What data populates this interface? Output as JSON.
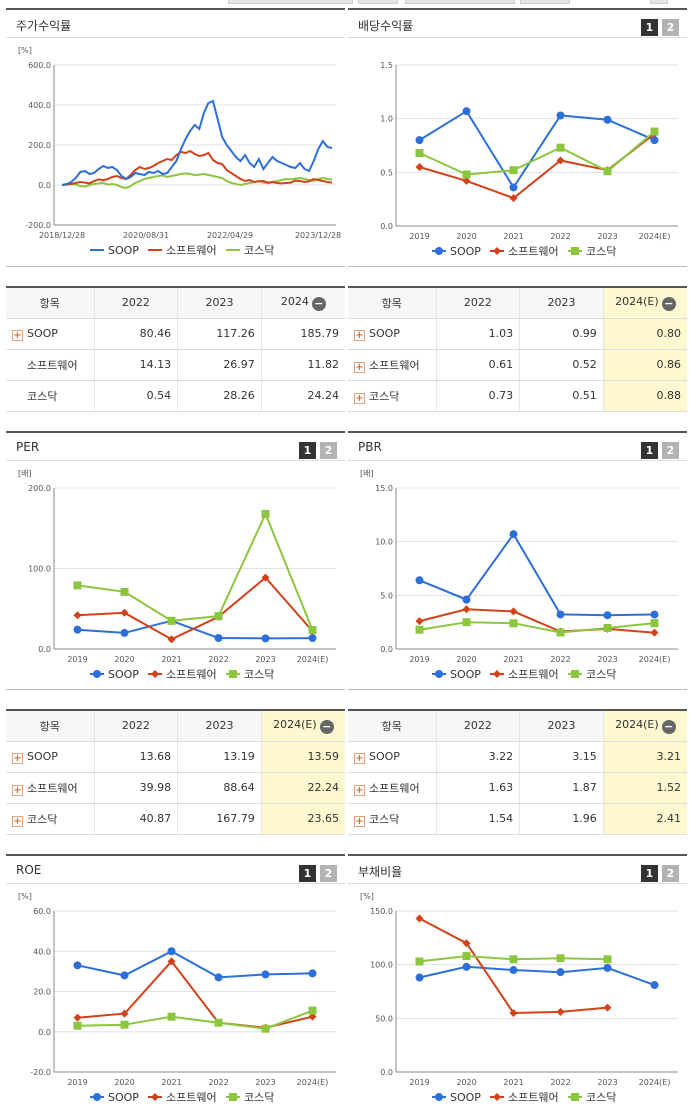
{
  "colors": {
    "soop": "#2d6fd9",
    "software": "#d3411a",
    "kosdaq": "#8cc63f"
  },
  "legend": [
    "SOOP",
    "소프트웨어",
    "코스닥"
  ],
  "tabs": {
    "one": "1",
    "two": "2"
  },
  "charts": [
    {
      "id": "stock",
      "title": "주가수익률",
      "unit": "[%]",
      "has_tabs": false,
      "chart_data": {
        "type": "line",
        "x_ticks": [
          "2018/12/28",
          "2020/08/31",
          "2022/04/29",
          "2023/12/28"
        ],
        "y_ticks": [
          "600.0",
          "400.0",
          "200.0",
          "0.0",
          "-200.0"
        ],
        "ylim": [
          -200,
          600
        ],
        "series": [
          {
            "name": "SOOP",
            "values": [
              0,
              5,
              15,
              35,
              65,
              70,
              55,
              60,
              80,
              95,
              85,
              90,
              75,
              45,
              30,
              40,
              60,
              55,
              50,
              65,
              60,
              70,
              55,
              60,
              90,
              120,
              180,
              230,
              270,
              300,
              280,
              360,
              410,
              420,
              330,
              240,
              200,
              170,
              140,
              120,
              150,
              110,
              90,
              130,
              80,
              110,
              140,
              120,
              110,
              100,
              90,
              85,
              110,
              80,
              70,
              120,
              180,
              220,
              190,
              185
            ]
          },
          {
            "name": "소프트웨어",
            "values": [
              0,
              2,
              5,
              10,
              15,
              12,
              8,
              20,
              28,
              24,
              30,
              40,
              45,
              35,
              30,
              50,
              75,
              90,
              80,
              85,
              95,
              110,
              120,
              130,
              125,
              150,
              165,
              160,
              170,
              155,
              145,
              150,
              160,
              125,
              110,
              105,
              75,
              60,
              45,
              30,
              20,
              25,
              15,
              18,
              20,
              12,
              15,
              10,
              8,
              10,
              12,
              22,
              20,
              15,
              18,
              30,
              25,
              20,
              15,
              12
            ]
          },
          {
            "name": "코스닥",
            "values": [
              0,
              3,
              5,
              2,
              -5,
              -8,
              0,
              5,
              8,
              10,
              2,
              5,
              0,
              -10,
              -15,
              -5,
              10,
              20,
              30,
              35,
              40,
              45,
              48,
              40,
              45,
              50,
              55,
              58,
              55,
              50,
              52,
              55,
              50,
              45,
              40,
              35,
              20,
              10,
              5,
              0,
              5,
              10,
              15,
              20,
              12,
              8,
              15,
              20,
              25,
              30,
              28,
              32,
              35,
              30,
              25,
              20,
              30,
              35,
              30,
              28
            ]
          }
        ]
      }
    },
    {
      "id": "dividend",
      "title": "배당수익률",
      "unit": "",
      "has_tabs": true,
      "chart_data": {
        "type": "line",
        "categories": [
          "2019",
          "2020",
          "2021",
          "2022",
          "2023",
          "2024(E)"
        ],
        "y_ticks": [
          "1.5",
          "1.0",
          "0.5",
          "0.0"
        ],
        "ylim": [
          0,
          1.5
        ],
        "series": [
          {
            "name": "SOOP",
            "values": [
              0.8,
              1.07,
              0.36,
              1.03,
              0.99,
              0.8
            ]
          },
          {
            "name": "소프트웨어",
            "values": [
              0.55,
              0.42,
              0.26,
              0.61,
              0.52,
              0.86
            ]
          },
          {
            "name": "코스닥",
            "values": [
              0.68,
              0.48,
              0.52,
              0.73,
              0.51,
              0.88
            ]
          }
        ]
      }
    },
    {
      "id": "per",
      "title": "PER",
      "unit": "[배]",
      "has_tabs": true,
      "chart_data": {
        "type": "line",
        "categories": [
          "2019",
          "2020",
          "2021",
          "2022",
          "2023",
          "2024(E)"
        ],
        "y_ticks": [
          "200.0",
          "100.0",
          "0.0"
        ],
        "ylim": [
          0,
          200
        ],
        "series": [
          {
            "name": "SOOP",
            "values": [
              24,
              20,
              35,
              13.68,
              13.19,
              13.59
            ]
          },
          {
            "name": "소프트웨어",
            "values": [
              42,
              45,
              12,
              39.98,
              88.64,
              22.24
            ]
          },
          {
            "name": "코스닥",
            "values": [
              79,
              71,
              35,
              40.87,
              167.79,
              23.65
            ]
          }
        ]
      }
    },
    {
      "id": "pbr",
      "title": "PBR",
      "unit": "[배]",
      "has_tabs": true,
      "chart_data": {
        "type": "line",
        "categories": [
          "2019",
          "2020",
          "2021",
          "2022",
          "2023",
          "2024(E)"
        ],
        "y_ticks": [
          "15.0",
          "10.0",
          "5.0",
          "0.0"
        ],
        "ylim": [
          0,
          15
        ],
        "series": [
          {
            "name": "SOOP",
            "values": [
              6.4,
              4.6,
              10.7,
              3.22,
              3.15,
              3.21
            ]
          },
          {
            "name": "소프트웨어",
            "values": [
              2.6,
              3.7,
              3.5,
              1.63,
              1.87,
              1.52
            ]
          },
          {
            "name": "코스닥",
            "values": [
              1.8,
              2.5,
              2.4,
              1.54,
              1.96,
              2.41
            ]
          }
        ]
      }
    },
    {
      "id": "roe",
      "title": "ROE",
      "unit": "[%]",
      "has_tabs": true,
      "chart_data": {
        "type": "line",
        "categories": [
          "2019",
          "2020",
          "2021",
          "2022",
          "2023",
          "2024(E)"
        ],
        "y_ticks": [
          "60.0",
          "40.0",
          "20.0",
          "0.0",
          "-20.0"
        ],
        "ylim": [
          -20,
          60
        ],
        "series": [
          {
            "name": "SOOP",
            "values": [
              33,
              28,
              40,
              27,
              28.5,
              29
            ]
          },
          {
            "name": "소프트웨어",
            "values": [
              7,
              9,
              35,
              4.5,
              2,
              7.5
            ]
          },
          {
            "name": "코스닥",
            "values": [
              3,
              3.5,
              7.5,
              4.5,
              1.5,
              10.5
            ]
          }
        ]
      }
    },
    {
      "id": "debt",
      "title": "부채비율",
      "unit": "[%]",
      "has_tabs": true,
      "chart_data": {
        "type": "line",
        "categories": [
          "2019",
          "2020",
          "2021",
          "2022",
          "2023",
          "2024(E)"
        ],
        "y_ticks": [
          "150.0",
          "100.0",
          "50.0",
          "0.0"
        ],
        "ylim": [
          0,
          150
        ],
        "series": [
          {
            "name": "SOOP",
            "values": [
              88,
              98,
              95,
              93,
              97,
              81
            ]
          },
          {
            "name": "소프트웨어",
            "values": [
              143,
              120,
              55,
              56,
              60,
              null
            ]
          },
          {
            "name": "코스닥",
            "values": [
              103,
              108,
              105,
              106,
              105,
              null
            ]
          }
        ]
      }
    }
  ],
  "tables": [
    {
      "id": "stock_table",
      "headers": [
        "항목",
        "2022",
        "2023",
        "2024"
      ],
      "minus_col": true,
      "highlight_last": false,
      "rows": [
        {
          "name": "SOOP",
          "plus": true,
          "values": [
            "80.46",
            "117.26",
            "185.79"
          ]
        },
        {
          "name": "소프트웨어",
          "plus": false,
          "values": [
            "14.13",
            "26.97",
            "11.82"
          ]
        },
        {
          "name": "코스닥",
          "plus": false,
          "values": [
            "0.54",
            "28.26",
            "24.24"
          ]
        }
      ]
    },
    {
      "id": "dividend_table",
      "headers": [
        "항목",
        "2022",
        "2023",
        "2024(E)"
      ],
      "minus_col": true,
      "highlight_last": true,
      "rows": [
        {
          "name": "SOOP",
          "plus": true,
          "values": [
            "1.03",
            "0.99",
            "0.80"
          ]
        },
        {
          "name": "소프트웨어",
          "plus": true,
          "values": [
            "0.61",
            "0.52",
            "0.86"
          ]
        },
        {
          "name": "코스닥",
          "plus": true,
          "values": [
            "0.73",
            "0.51",
            "0.88"
          ]
        }
      ]
    },
    {
      "id": "per_table",
      "headers": [
        "항목",
        "2022",
        "2023",
        "2024(E)"
      ],
      "minus_col": true,
      "highlight_last": true,
      "rows": [
        {
          "name": "SOOP",
          "plus": true,
          "values": [
            "13.68",
            "13.19",
            "13.59"
          ]
        },
        {
          "name": "소프트웨어",
          "plus": true,
          "values": [
            "39.98",
            "88.64",
            "22.24"
          ]
        },
        {
          "name": "코스닥",
          "plus": true,
          "values": [
            "40.87",
            "167.79",
            "23.65"
          ]
        }
      ]
    },
    {
      "id": "pbr_table",
      "headers": [
        "항목",
        "2022",
        "2023",
        "2024(E)"
      ],
      "minus_col": true,
      "highlight_last": true,
      "rows": [
        {
          "name": "SOOP",
          "plus": true,
          "values": [
            "3.22",
            "3.15",
            "3.21"
          ]
        },
        {
          "name": "소프트웨어",
          "plus": true,
          "values": [
            "1.63",
            "1.87",
            "1.52"
          ]
        },
        {
          "name": "코스닥",
          "plus": true,
          "values": [
            "1.54",
            "1.96",
            "2.41"
          ]
        }
      ]
    }
  ]
}
